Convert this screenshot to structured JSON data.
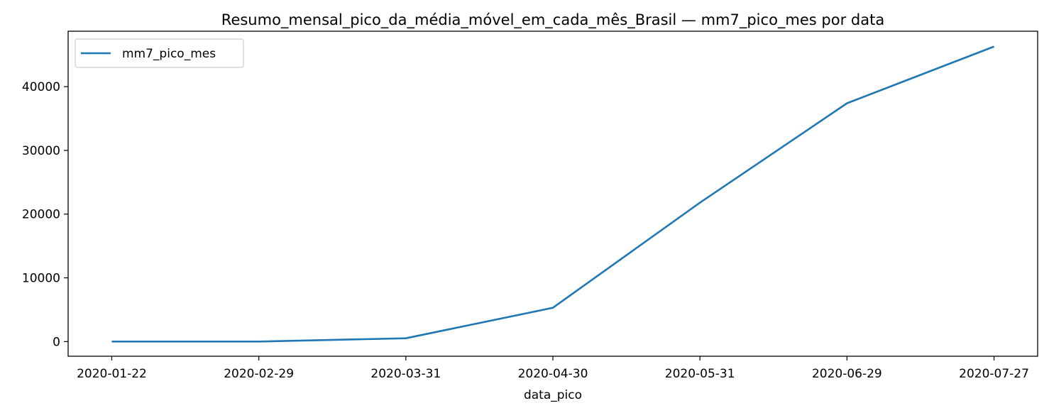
{
  "chart_data": {
    "type": "line",
    "title": "Resumo_mensal_pico_da_média_móvel_em_cada_mês_Brasil — mm7_pico_mes por data",
    "xlabel": "data_pico",
    "ylabel": "",
    "categories": [
      "2020-01-22",
      "2020-02-29",
      "2020-03-31",
      "2020-04-30",
      "2020-05-31",
      "2020-06-29",
      "2020-07-27"
    ],
    "series": [
      {
        "name": "mm7_pico_mes",
        "values": [
          0,
          0,
          520,
          5300,
          21800,
          37400,
          46300
        ],
        "color": "#1f77b4"
      }
    ],
    "ylim": [
      -2300,
      48700
    ],
    "yticks": [
      0,
      10000,
      20000,
      30000,
      40000
    ],
    "ytick_labels": [
      "0",
      "10000",
      "20000",
      "30000",
      "40000"
    ],
    "grid": false,
    "legend_position": "upper left"
  }
}
